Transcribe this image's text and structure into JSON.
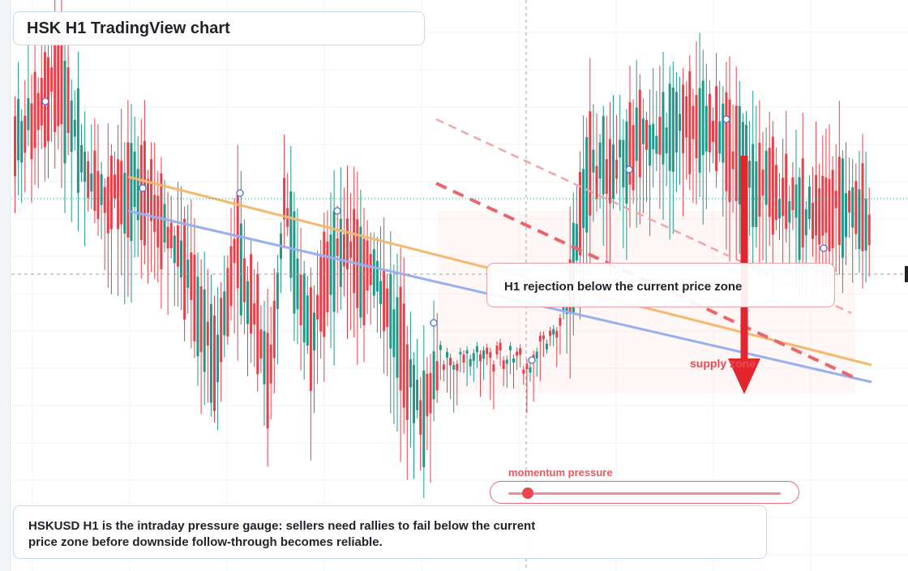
{
  "title": "HSK H1 TradingView chart",
  "callout": {
    "text": "H1 rejection below the current price zone"
  },
  "zone_label": "supply zone",
  "momentum": {
    "label": "momentum pressure",
    "level": 0.07
  },
  "summary": "HSKUSD H1 is the intraday pressure gauge: sellers need rallies to fail below the current price zone before downside follow-through becomes reliable.",
  "colors": {
    "up": "#1f9a8a",
    "down": "#e8404a",
    "trend_orange": "#f5b870",
    "trend_blue": "#98aff0",
    "resistance": "#e8676c",
    "arrow": "#e3262d"
  },
  "icons": {
    "direction": "down-arrow-icon"
  }
}
